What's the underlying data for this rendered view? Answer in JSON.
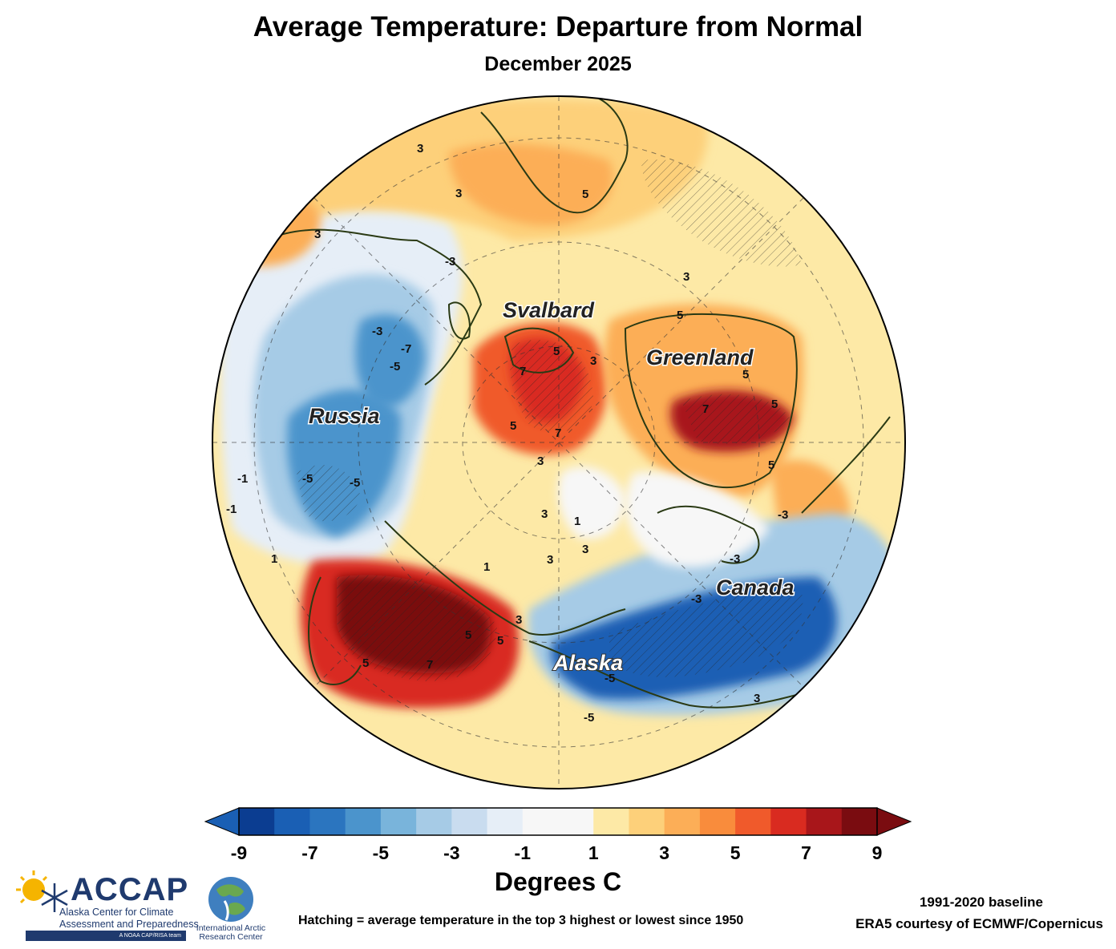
{
  "header": {
    "title": "Average Temperature: Departure from Normal",
    "subtitle": "December 2025"
  },
  "map": {
    "region_labels": {
      "svalbard": "Svalbard",
      "greenland": "Greenland",
      "russia": "Russia",
      "canada": "Canada",
      "alaska": "Alaska"
    },
    "contour_labels": {
      "russia_a": "-3",
      "russia_b": "-7",
      "russia_c": "-5",
      "russia_d": "-5",
      "russia_e": "-5",
      "russia_f": "-3",
      "russia_g": "-1",
      "russia_h": "-1",
      "eu_a": "3",
      "eu_b": "3",
      "eu_c": "5",
      "eu_d": "3",
      "sval_a": "5",
      "sval_b": "7",
      "sval_c": "5",
      "sval_d": "7",
      "ocean_a": "3",
      "ocean_b": "3",
      "ocean_c": "1",
      "ocean_d": "3",
      "ocean_e": "3",
      "ocean_f": "1",
      "gl_a": "5",
      "gl_b": "5",
      "gl_c": "3",
      "gl_d": "7",
      "gl_e": "5",
      "gl_f": "5",
      "gl_g": "3",
      "ak_a": "-5",
      "ak_b": "-5",
      "ak_c": "-3",
      "ca_a": "-3",
      "ca_b": "-3",
      "ca_c": "3",
      "sib_a": "5",
      "sib_b": "5",
      "sib_c": "7",
      "sib_d": "5",
      "sib_e": "3",
      "sib_f": "1"
    },
    "colors": {
      "ocean_base": "#fde9a6",
      "land_outline": "#2a3a14"
    }
  },
  "colorbar": {
    "unit_label": "Degrees C",
    "ticks": [
      "-9",
      "-7",
      "-5",
      "-3",
      "-1",
      "1",
      "3",
      "5",
      "7",
      "9"
    ],
    "colors": [
      "#0b3d91",
      "#1a5fb4",
      "#2b75bf",
      "#4b94cc",
      "#79b4db",
      "#a6cbe6",
      "#c9dcef",
      "#e6eef7",
      "#f7f7f7",
      "#f7f7f7",
      "#fde9a6",
      "#fdd07a",
      "#fcae57",
      "#f98c3c",
      "#f05a2b",
      "#d92b20",
      "#a8161a",
      "#7a0c10"
    ],
    "under_color": "#1a5fb4",
    "over_color": "#7a0c10"
  },
  "footer": {
    "hatching_note": "Hatching = average temperature in the top 3 highest or lowest since 1950",
    "baseline": "1991-2020 baseline",
    "credit": "ERA5 courtesy of ECMWF/Copernicus",
    "accap_name": "ACCAP",
    "accap_line1": "Alaska Center for Climate",
    "accap_line2": "Assessment and Preparedness",
    "accap_band": "A NOAA CAP/RISA team",
    "iarc_line1": "International Arctic",
    "iarc_line2": "Research Center"
  }
}
